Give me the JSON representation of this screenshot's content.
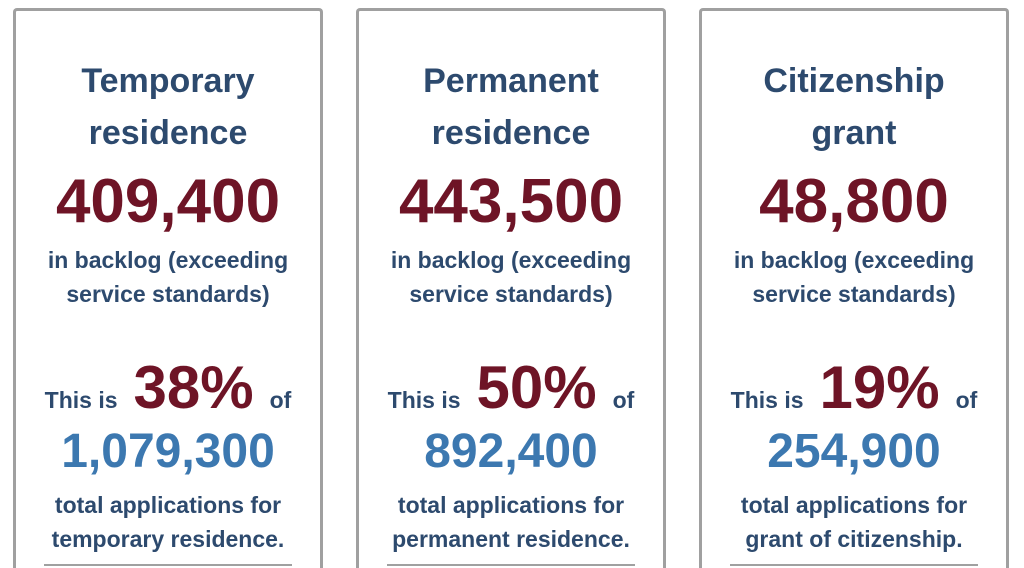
{
  "cards": [
    {
      "title": "Temporary residence",
      "backlog": "409,400",
      "backlog_label": "in backlog (exceeding service standards)",
      "this_is": "This is",
      "percent": "38%",
      "of": "of",
      "total": "1,079,300",
      "total_label": "total applications for temporary residence."
    },
    {
      "title": "Permanent residence",
      "backlog": "443,500",
      "backlog_label": "in backlog (exceeding service standards)",
      "this_is": "This is",
      "percent": "50%",
      "of": "of",
      "total": "892,400",
      "total_label": "total applications for permanent residence."
    },
    {
      "title": "Citizenship grant",
      "backlog": "48,800",
      "backlog_label": "in backlog (exceeding service standards)",
      "this_is": "This is",
      "percent": "19%",
      "of": "of",
      "total": "254,900",
      "total_label": "total applications for grant of citizenship."
    }
  ],
  "colors": {
    "heading": "#2d4a6e",
    "backlog": "#6e1426",
    "total": "#3c78b0",
    "border": "#a0a0a0"
  }
}
